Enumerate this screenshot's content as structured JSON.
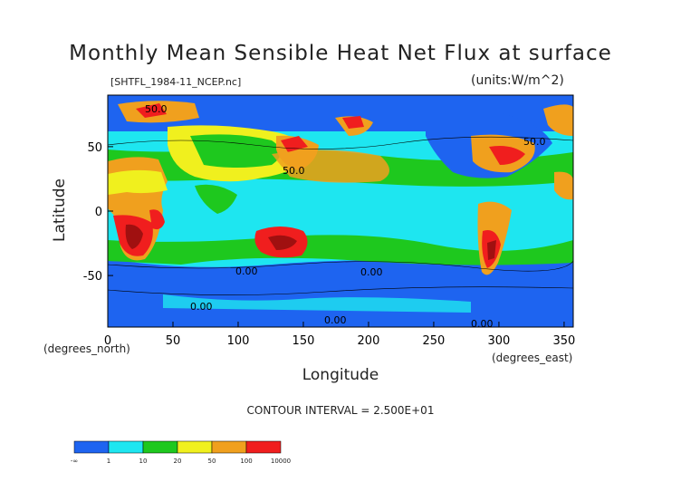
{
  "chart_data": {
    "type": "heatmap",
    "title": "Monthly Mean Sensible Heat Net Flux at surface",
    "subtitle_left": "[SHTFL_1984-11_NCEP.nc]",
    "units": "(units:W/m^2)",
    "xlabel": "Longitude",
    "ylabel": "Latitude",
    "x_unit_label": "(degrees_east)",
    "y_unit_label": "(degrees_north)",
    "xlim": [
      0,
      357
    ],
    "ylim": [
      -90,
      90
    ],
    "x_ticks": [
      0,
      50,
      100,
      150,
      200,
      250,
      300,
      350
    ],
    "y_ticks": [
      -50,
      0,
      50
    ],
    "contour_interval": "CONTOUR INTERVAL = 2.500E+01",
    "contour_labels": [
      "50.0",
      "50.0",
      "50.0",
      "0.00",
      "0.00",
      "0.00",
      "0.00",
      "0.00"
    ],
    "colorbar": {
      "levels": [
        "-∞",
        "1",
        "10",
        "20",
        "50",
        "100",
        "10000"
      ],
      "colors": [
        "#1e64f0",
        "#1ee6f0",
        "#1ec81e",
        "#f0f01e",
        "#f0a01e",
        "#f01e1e"
      ]
    }
  }
}
